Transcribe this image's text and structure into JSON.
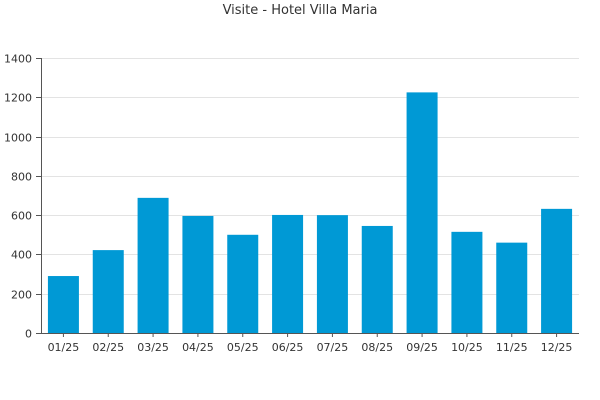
{
  "chart_data": {
    "type": "bar",
    "title": "Visite - Hotel Villa Maria",
    "xlabel": "",
    "ylabel": "",
    "categories": [
      "01/25",
      "02/25",
      "03/25",
      "04/25",
      "05/25",
      "06/25",
      "07/25",
      "08/25",
      "09/25",
      "10/25",
      "11/25",
      "12/25"
    ],
    "values": [
      290,
      422,
      688,
      596,
      500,
      601,
      600,
      545,
      1225,
      515,
      460,
      632
    ],
    "ylim": [
      0,
      1400
    ],
    "yticks": [
      0,
      200,
      400,
      600,
      800,
      1000,
      1200,
      1400
    ],
    "grid": true,
    "legend": "none",
    "colors": {
      "bar": "#0099d5",
      "axis": "#555555",
      "grid": "#e3e3e3",
      "text": "#333333"
    }
  }
}
